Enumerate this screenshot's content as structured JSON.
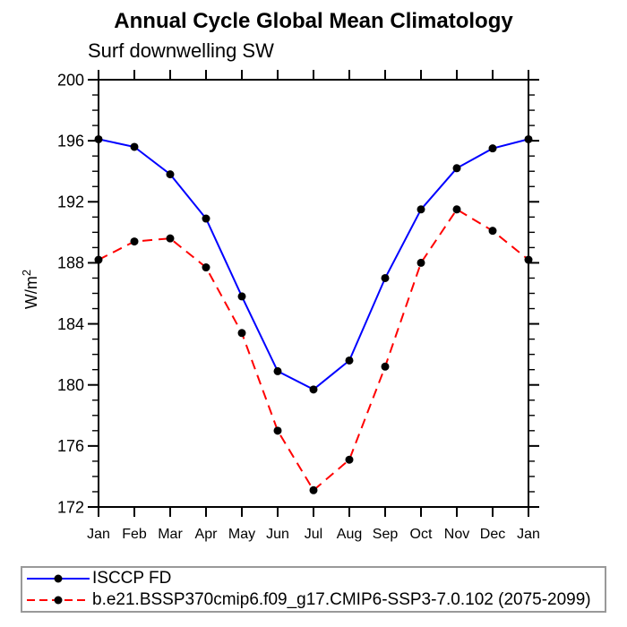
{
  "page": {
    "background_color": "#ffffff",
    "axis_color": "#000000",
    "legend_border_color": "#999999"
  },
  "chart_data": {
    "type": "line",
    "title": "Annual Cycle Global Mean Climatology",
    "subtitle": "Surf downwelling SW",
    "ylabel_base": "W/m",
    "ylabel_superscript": "2",
    "categories": [
      "Jan",
      "Feb",
      "Mar",
      "Apr",
      "May",
      "Jun",
      "Jul",
      "Aug",
      "Sep",
      "Oct",
      "Nov",
      "Dec",
      "Jan"
    ],
    "ylim": [
      172,
      200
    ],
    "ytick_major_step": 4,
    "ytick_minor_step": 1,
    "ytick_labels": [
      "172",
      "176",
      "180",
      "184",
      "188",
      "192",
      "196",
      "200"
    ],
    "grid": false,
    "legend_position": "bottom-left-box",
    "series": [
      {
        "name": "ISCCP FD",
        "line_color": "#0000ff",
        "line_style": "solid",
        "marker": "circle",
        "marker_color": "#000000",
        "values": [
          196.1,
          195.6,
          193.8,
          190.9,
          185.8,
          180.9,
          179.7,
          181.6,
          187.0,
          191.5,
          194.2,
          195.5,
          196.1
        ]
      },
      {
        "name": "b.e21.BSSP370cmip6.f09_g17.CMIP6-SSP3-7.0.102 (2075-2099)",
        "line_color": "#ff0000",
        "line_style": "dashed",
        "marker": "circle",
        "marker_color": "#000000",
        "values": [
          188.2,
          189.4,
          189.6,
          187.7,
          183.4,
          177.0,
          173.1,
          175.1,
          181.2,
          188.0,
          191.5,
          190.1,
          188.2
        ]
      }
    ]
  }
}
